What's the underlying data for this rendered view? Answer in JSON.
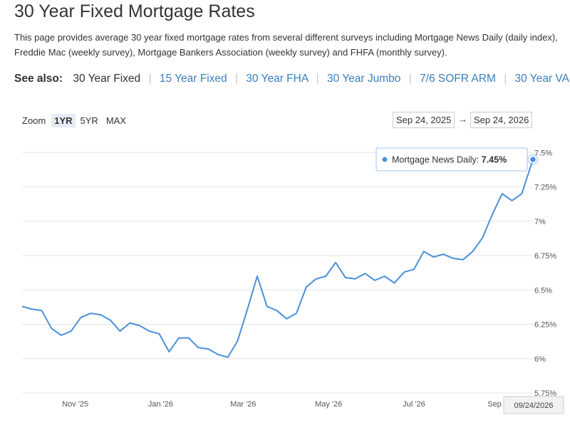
{
  "page": {
    "title": "30 Year Fixed Mortgage Rates",
    "description": "This page provides average 30 year fixed mortgage rates from several different surveys including Mortgage News Daily (daily index), Freddie Mac (weekly survey), Mortgage Bankers Association (weekly survey) and FHFA (monthly survey)."
  },
  "see_also": {
    "label": "See also:",
    "links": [
      "30 Year Fixed",
      "15 Year Fixed",
      "30 Year FHA",
      "30 Year Jumbo",
      "7/6 SOFR ARM",
      "30 Year VA"
    ],
    "separator": "|"
  },
  "zoom": {
    "label": "Zoom",
    "options": [
      "1YR",
      "5YR",
      "MAX"
    ],
    "selected": "1YR"
  },
  "date_range": {
    "from": "Sep 24, 2025",
    "arrow": "→",
    "to": "Sep 24, 2026"
  },
  "colors": {
    "line": "#4a90d9",
    "grid": "#e6e6e6",
    "axis_text": "#555555"
  },
  "chart_data": {
    "type": "line",
    "series": [
      {
        "name": "Mortgage News Daily",
        "x": [
          "2025-09-24",
          "2025-10-01",
          "2025-10-08",
          "2025-10-15",
          "2025-10-22",
          "2025-10-29",
          "2025-11-05",
          "2025-11-12",
          "2025-11-19",
          "2025-11-26",
          "2025-12-03",
          "2025-12-10",
          "2025-12-17",
          "2025-12-24",
          "2025-12-31",
          "2026-01-07",
          "2026-01-14",
          "2026-01-21",
          "2026-01-28",
          "2026-02-04",
          "2026-02-11",
          "2026-02-18",
          "2026-02-25",
          "2026-03-04",
          "2026-03-11",
          "2026-03-18",
          "2026-03-25",
          "2026-04-01",
          "2026-04-08",
          "2026-04-15",
          "2026-04-22",
          "2026-04-29",
          "2026-05-06",
          "2026-05-13",
          "2026-05-20",
          "2026-05-27",
          "2026-06-03",
          "2026-06-10",
          "2026-06-17",
          "2026-06-24",
          "2026-07-01",
          "2026-07-08",
          "2026-07-15",
          "2026-07-22",
          "2026-07-29",
          "2026-08-05",
          "2026-08-12",
          "2026-08-19",
          "2026-08-26",
          "2026-09-02",
          "2026-09-09",
          "2026-09-16",
          "2026-09-24"
        ],
        "values": [
          6.38,
          6.36,
          6.35,
          6.22,
          6.17,
          6.2,
          6.3,
          6.33,
          6.32,
          6.28,
          6.2,
          6.26,
          6.24,
          6.2,
          6.18,
          6.05,
          6.15,
          6.15,
          6.08,
          6.07,
          6.03,
          6.01,
          6.13,
          6.36,
          6.6,
          6.38,
          6.35,
          6.29,
          6.33,
          6.52,
          6.58,
          6.6,
          6.7,
          6.59,
          6.58,
          6.62,
          6.57,
          6.6,
          6.55,
          6.63,
          6.65,
          6.78,
          6.74,
          6.76,
          6.73,
          6.72,
          6.78,
          6.88,
          7.05,
          7.2,
          7.15,
          7.2,
          7.45
        ]
      }
    ],
    "x_tick_labels": [
      "Nov '25",
      "Jan '26",
      "Mar '26",
      "May '26",
      "Jul '26",
      "Sep '26"
    ],
    "x_tick_dates": [
      "2025-11-01",
      "2026-01-01",
      "2026-03-01",
      "2026-05-01",
      "2026-07-01",
      "2026-09-01"
    ],
    "y_ticks": [
      5.75,
      6,
      6.25,
      6.5,
      6.75,
      7,
      7.25,
      7.5
    ],
    "y_tick_labels": [
      "5.75%",
      "6%",
      "6.25%",
      "6.5%",
      "6.75%",
      "7%",
      "7.25%",
      "7.5%"
    ],
    "ylim": [
      5.75,
      7.6
    ],
    "xlim": [
      "2025-09-24",
      "2026-09-24"
    ],
    "grid": true,
    "y_axis_side": "right",
    "tooltip": {
      "series": "Mortgage News Daily",
      "separator": ":",
      "value": "7.45%",
      "date": "09/24/2026"
    }
  }
}
